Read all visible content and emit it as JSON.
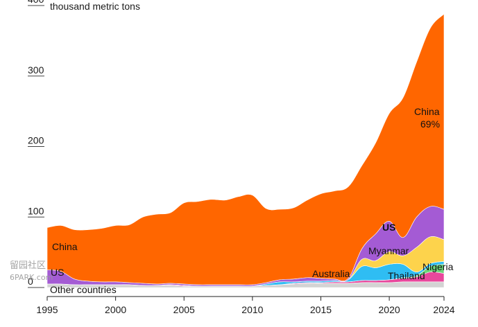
{
  "chart_data": {
    "type": "area",
    "unit_label": "thousand metric tons",
    "ylim": [
      0,
      400
    ],
    "y_ticks": [
      "0",
      "100",
      "200",
      "300",
      "400"
    ],
    "x_ticks": [
      "1995",
      "2000",
      "2005",
      "2010",
      "2015",
      "2020",
      "2024"
    ],
    "x": [
      1995,
      1996,
      1997,
      1998,
      1999,
      2000,
      2001,
      2002,
      2003,
      2004,
      2005,
      2006,
      2007,
      2008,
      2009,
      2010,
      2011,
      2012,
      2013,
      2014,
      2015,
      2016,
      2017,
      2018,
      2019,
      2020,
      2021,
      2022,
      2023,
      2024
    ],
    "stack_order_bottom_to_top": [
      "Other countries",
      "Thailand",
      "Nigeria",
      "Australia",
      "Myanmar",
      "US",
      "China"
    ],
    "series": [
      {
        "name": "Other countries",
        "color": "#d3d3d3",
        "values": [
          5,
          5,
          4,
          4,
          4,
          4,
          4,
          3,
          3,
          3,
          2,
          2,
          2,
          2,
          2,
          2,
          3,
          4,
          5,
          6,
          6,
          6,
          6,
          7,
          7,
          7,
          8,
          8,
          8,
          8
        ]
      },
      {
        "name": "Thailand",
        "color": "#e8479c",
        "values": [
          0,
          0,
          0,
          0,
          0,
          0,
          0,
          0,
          0,
          1,
          1,
          0,
          0,
          0,
          0,
          0,
          0,
          0,
          1,
          1,
          1,
          2,
          2,
          3,
          3,
          4,
          5,
          7,
          14,
          12
        ]
      },
      {
        "name": "Nigeria",
        "color": "#6cd67a",
        "values": [
          0,
          0,
          0,
          0,
          0,
          0,
          0,
          0,
          0,
          0,
          0,
          0,
          0,
          0,
          0,
          0,
          0,
          0,
          0,
          0,
          0,
          0,
          0,
          0,
          0,
          0,
          1,
          2,
          8,
          13
        ]
      },
      {
        "name": "Australia",
        "color": "#2fbdf3",
        "values": [
          0,
          0,
          0,
          0,
          0,
          0,
          0,
          0,
          0,
          0,
          0,
          0,
          0,
          0,
          0,
          0,
          2,
          4,
          2,
          2,
          2,
          2,
          3,
          20,
          18,
          22,
          19,
          5,
          4,
          4
        ]
      },
      {
        "name": "Myanmar",
        "color": "#fdd34c",
        "values": [
          0,
          0,
          0,
          0,
          0,
          0,
          0,
          0,
          0,
          0,
          0,
          0,
          0,
          0,
          0,
          0,
          0,
          0,
          0,
          0,
          0,
          0,
          0,
          10,
          10,
          18,
          12,
          35,
          38,
          31
        ]
      },
      {
        "name": "US",
        "color": "#a45bd4",
        "values": [
          20,
          18,
          8,
          5,
          4,
          4,
          3,
          3,
          2,
          2,
          2,
          2,
          2,
          2,
          2,
          2,
          2,
          3,
          4,
          5,
          4,
          2,
          2,
          15,
          38,
          43,
          26,
          43,
          43,
          43
        ]
      },
      {
        "name": "China",
        "color": "#ff6600",
        "values": [
          60,
          65,
          70,
          73,
          76,
          80,
          82,
          94,
          99,
          100,
          115,
          118,
          121,
          120,
          125,
          127,
          105,
          100,
          101,
          110,
          120,
          125,
          130,
          118,
          129,
          153,
          198,
          220,
          253,
          277
        ]
      }
    ],
    "annotations": [
      {
        "text": "China",
        "series": "China"
      },
      {
        "text": "69%",
        "series": "China"
      },
      {
        "text": "China",
        "series": "China"
      },
      {
        "text": "US",
        "series": "US"
      },
      {
        "text": "US",
        "series": "US"
      },
      {
        "text": "Myanmar",
        "series": "Myanmar"
      },
      {
        "text": "Australia",
        "series": "Australia"
      },
      {
        "text": "Thailand",
        "series": "Thailand"
      },
      {
        "text": "Nigeria",
        "series": "Nigeria"
      },
      {
        "text": "Other countries",
        "series": "Other countries"
      }
    ]
  },
  "watermark": {
    "line1": "留园社区",
    "line2": "6PARK.com"
  }
}
